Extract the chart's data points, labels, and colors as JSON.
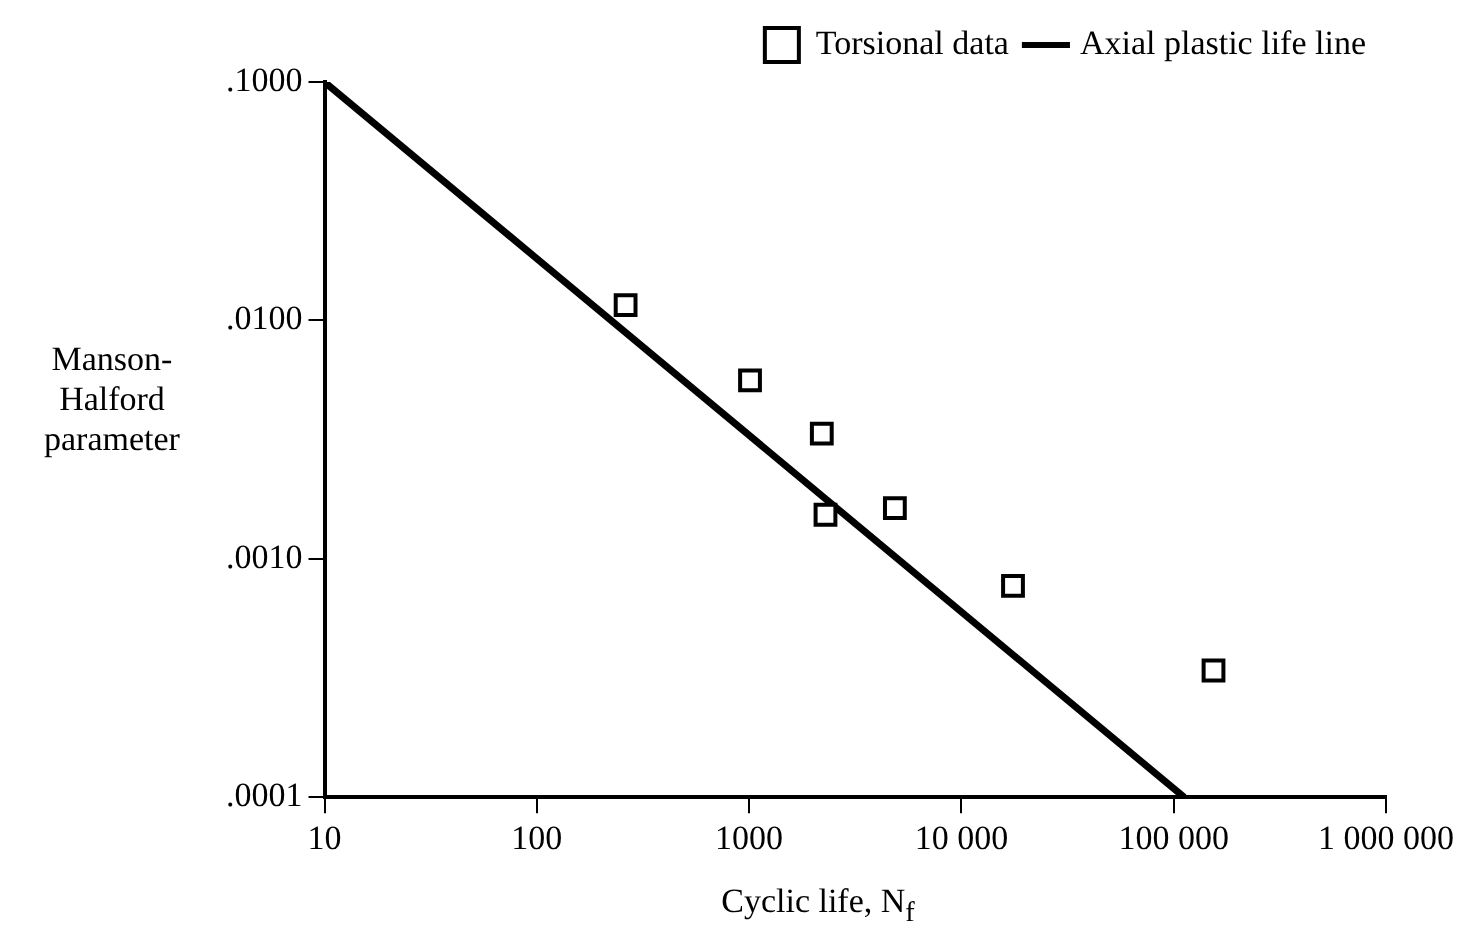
{
  "chart_data": {
    "type": "scatter",
    "xlabel": "Cyclic life, N$_{f}$",
    "ylabel": "Manson-Halford parameter",
    "log": "xy",
    "grid": false,
    "legend": "top right",
    "marker": "square",
    "xlim": [
      10,
      1000000
    ],
    "xticks": [
      10,
      100,
      1000,
      {
        "value": 10000,
        "label": "10 000"
      },
      {
        "value": 100000,
        "label": "100 000"
      },
      {
        "value": 1000000,
        "label": "1 000 000"
      }
    ],
    "ylim": [
      0.0001,
      0.1
    ],
    "yticks": [
      {
        "value": 0.1,
        "label": ".1000"
      },
      {
        "value": 0.01,
        "label": ".0100"
      },
      {
        "value": 0.001,
        "label": ".0010"
      },
      {
        "value": 0.0001,
        "label": ".0001"
      }
    ],
    "series": [
      {
        "name": "Torsional data",
        "color": "#000000",
        "x": [
          262,
          1010,
          2200,
          2290,
          4860,
          17500,
          154000
        ],
        "values": [
          0.0116,
          0.0056,
          0.00335,
          0.00153,
          0.00163,
          0.00077,
          0.00034
        ]
      },
      {
        "name": "Axial plastic life line",
        "type": "line",
        "color": "#000000",
        "marker": "none",
        "line_style": "solid",
        "x": [
          10,
          112000
        ],
        "values": [
          0.1,
          0.0001
        ]
      }
    ]
  }
}
